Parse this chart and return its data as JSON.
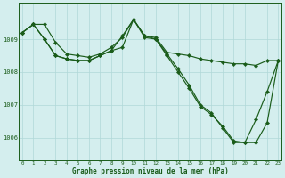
{
  "bg_color": "#d4eeee",
  "line_color": "#1a5c1a",
  "grid_color": "#b0d8d8",
  "xlabel": "Graphe pression niveau de la mer (hPa)",
  "xlabel_color": "#1a5c1a",
  "x_ticks": [
    0,
    1,
    2,
    3,
    4,
    5,
    6,
    7,
    8,
    9,
    10,
    11,
    12,
    13,
    14,
    15,
    16,
    17,
    18,
    19,
    20,
    21,
    22,
    23
  ],
  "ylim": [
    1005.3,
    1010.1
  ],
  "yticks": [
    1006,
    1007,
    1008,
    1009
  ],
  "line1": [
    1009.2,
    1009.45,
    1009.45,
    1008.9,
    1008.55,
    1008.5,
    1008.45,
    1008.55,
    1008.75,
    1009.05,
    1009.6,
    1009.1,
    1009.05,
    1008.6,
    1008.55,
    1008.5,
    1008.4,
    1008.35,
    1008.3,
    1008.25,
    1008.25,
    1008.2,
    1008.35,
    1008.35
  ],
  "line2": [
    1009.2,
    1009.45,
    1009.0,
    1008.5,
    1008.4,
    1008.35,
    1008.35,
    1008.5,
    1008.65,
    1009.1,
    1009.6,
    1009.1,
    1009.0,
    1008.5,
    1008.0,
    1007.5,
    1006.95,
    1006.7,
    1006.35,
    1005.9,
    1005.85,
    1006.55,
    1007.4,
    1008.35
  ],
  "line3": [
    1009.2,
    1009.45,
    1009.0,
    1008.5,
    1008.4,
    1008.35,
    1008.35,
    1008.5,
    1008.65,
    1008.75,
    1009.6,
    1009.05,
    1009.0,
    1008.55,
    1008.1,
    1007.6,
    1007.0,
    1006.75,
    1006.3,
    1005.85,
    1005.85,
    1005.85,
    1006.45,
    1008.35
  ]
}
